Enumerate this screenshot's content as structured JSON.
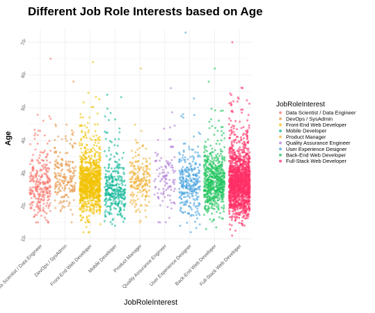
{
  "chart_data": {
    "type": "scatter",
    "title": "Different Job Role Interests based on Age",
    "xlabel": "JobRoleInterest",
    "ylabel": "Age",
    "ylim": [
      9,
      74
    ],
    "yticks": [
      10,
      20,
      30,
      40,
      50,
      60,
      70
    ],
    "grid": true,
    "jitter": true,
    "legend": {
      "title": "JobRoleInterest",
      "position": "right"
    },
    "series": [
      {
        "name": "Data Scientist / Data Engineer",
        "color": "#F8766D",
        "count": 280,
        "median": 25,
        "min": 15,
        "max": 65
      },
      {
        "name": "DevOps / SysAdmin",
        "color": "#E69A4C",
        "count": 200,
        "median": 27,
        "min": 15,
        "max": 58
      },
      {
        "name": "Front-End Web Developer",
        "color": "#F2C200",
        "count": 900,
        "median": 26,
        "min": 12,
        "max": 64
      },
      {
        "name": "Mobile Developer",
        "color": "#12B89A",
        "count": 330,
        "median": 24,
        "min": 14,
        "max": 54
      },
      {
        "name": "Product Manager",
        "color": "#F0B43C",
        "count": 210,
        "median": 27,
        "min": 15,
        "max": 62
      },
      {
        "name": "Quality Assurance Engineer",
        "color": "#B07FD6",
        "count": 110,
        "median": 27,
        "min": 15,
        "max": 56
      },
      {
        "name": "User Experience Designer",
        "color": "#4AA3DF",
        "count": 300,
        "median": 26,
        "min": 12,
        "max": 73
      },
      {
        "name": "Back-End Web Developer",
        "color": "#1FC45E",
        "count": 600,
        "median": 26,
        "min": 13,
        "max": 62
      },
      {
        "name": "Full-Stack Web Developer",
        "color": "#FF2E66",
        "count": 1500,
        "median": 26,
        "min": 11,
        "max": 70
      }
    ]
  }
}
